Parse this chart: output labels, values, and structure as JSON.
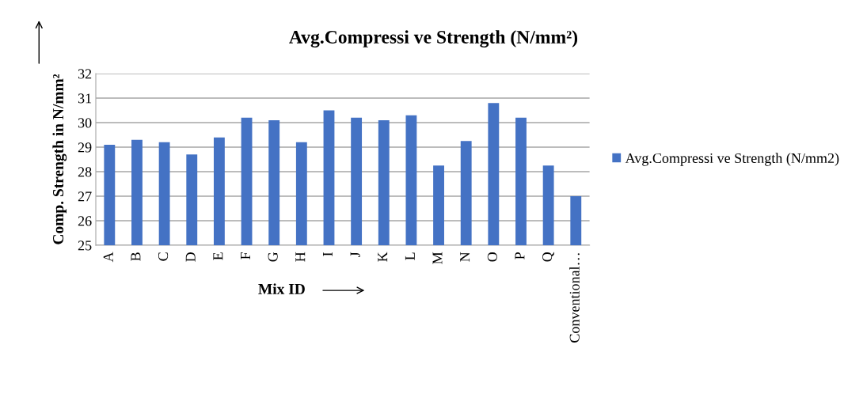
{
  "chart_data": {
    "type": "bar",
    "title": "Avg.Compressi ve Strength (N/mm²)",
    "xlabel": "Mix ID",
    "ylabel": "Comp. Strength in N/mm²",
    "categories": [
      "A",
      "B",
      "C",
      "D",
      "E",
      "F",
      "G",
      "H",
      "I",
      "J",
      "K",
      "L",
      "M",
      "N",
      "O",
      "P",
      "Q",
      "Conventional…"
    ],
    "series": [
      {
        "name": "Avg.Compressi ve Strength (N/mm2)",
        "color": "#4472c4",
        "values": [
          29.1,
          29.3,
          29.2,
          28.7,
          29.4,
          30.2,
          30.1,
          29.2,
          30.5,
          30.2,
          30.1,
          30.3,
          28.25,
          29.25,
          30.8,
          30.2,
          28.25,
          27.0
        ]
      }
    ],
    "ylim": [
      25,
      32
    ],
    "yticks": [
      25,
      26,
      27,
      28,
      29,
      30,
      31,
      32
    ],
    "grid": "y",
    "legend": "right"
  }
}
